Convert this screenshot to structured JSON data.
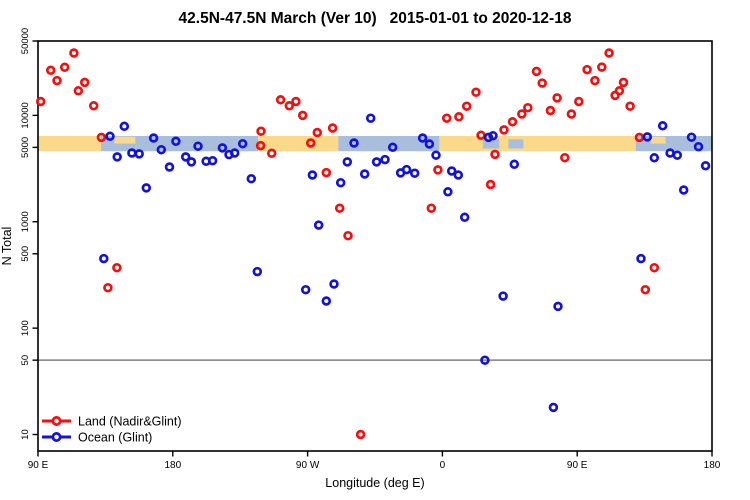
{
  "title": "42.5N-47.5N March (Ver 10)   2015-01-01 to 2020-12-18",
  "axes": {
    "x": {
      "label": "Longitude (deg E)",
      "range": [
        90,
        540
      ],
      "ticks": [
        {
          "lon": 90,
          "label": "90 E"
        },
        {
          "lon": 180,
          "label": "180"
        },
        {
          "lon": 270,
          "label": "90 W"
        },
        {
          "lon": 360,
          "label": "0"
        },
        {
          "lon": 450,
          "label": "90 E"
        },
        {
          "lon": 540,
          "label": "180"
        }
      ]
    },
    "y": {
      "label": "N Total",
      "scale": "log",
      "range": [
        7,
        50000
      ],
      "ticks": [
        {
          "value": 50000,
          "label": "50000"
        },
        {
          "value": 10000,
          "label": "10000"
        },
        {
          "value": 5000,
          "label": "5000"
        },
        {
          "value": 1000,
          "label": "1000"
        },
        {
          "value": 500,
          "label": "500"
        },
        {
          "value": 100,
          "label": "100"
        },
        {
          "value": 50,
          "label": "50"
        },
        {
          "value": 10,
          "label": "10"
        }
      ]
    }
  },
  "reference_line": {
    "value": 50,
    "color": "#7f7f7f"
  },
  "land_ocean_band": {
    "n_range": [
      4600,
      6400
    ],
    "land_color": "#fbd98a",
    "ocean_color": "#a9bedc",
    "segments": [
      {
        "from": 90,
        "to": 132,
        "surface": "land"
      },
      {
        "from": 132,
        "to": 237,
        "surface": "ocean"
      },
      {
        "from": 237,
        "to": 290.5,
        "surface": "land"
      },
      {
        "from": 290.5,
        "to": 358,
        "surface": "ocean"
      },
      {
        "from": 358,
        "to": 489,
        "surface": "land"
      },
      {
        "from": 489,
        "to": 540,
        "surface": "ocean"
      }
    ],
    "patches": [
      {
        "from": 141,
        "to": 155,
        "surface": "land"
      },
      {
        "from": 499,
        "to": 509,
        "surface": "land"
      },
      {
        "from": 387,
        "to": 398,
        "surface": "ocean"
      },
      {
        "from": 404,
        "to": 414,
        "surface": "ocean"
      }
    ]
  },
  "legend": {
    "items": [
      {
        "label": "Land (Nadir&Glint)",
        "color": "#f60d0d"
      },
      {
        "label": "Ocean (Glint)",
        "color": "#1212dd"
      }
    ]
  },
  "chart_data": {
    "type": "scatter",
    "title": "42.5N-47.5N March (Ver 10)   2015-01-01 to 2020-12-18",
    "xlabel": "Longitude (deg E)",
    "ylabel": "N Total",
    "x_axis_note": "longitude axis spans 450 degrees eastward from 90E (90E > 180 > 90W > 0 > 90E > 180); values above 360 wrap past Greenwich",
    "y_axis": "log scale, 7 to 50000",
    "grid": false,
    "legend_position": "bottom-left",
    "series": [
      {
        "name": "Land (Nadir&Glint)",
        "color": "#f60d0d",
        "points": [
          [
            91.8,
            13500
          ],
          [
            98.5,
            26500
          ],
          [
            102.7,
            21200
          ],
          [
            107.8,
            28300
          ],
          [
            114,
            38600
          ],
          [
            116.9,
            17000
          ],
          [
            121.2,
            20400
          ],
          [
            127.2,
            12300
          ],
          [
            132.3,
            6200
          ],
          [
            136.7,
            240
          ],
          [
            142.7,
            370
          ],
          [
            238.6,
            5200
          ],
          [
            238.9,
            7100
          ],
          [
            246,
            4400
          ],
          [
            252,
            14000
          ],
          [
            257.8,
            12300
          ],
          [
            262.2,
            13500
          ],
          [
            266.7,
            10000
          ],
          [
            272.1,
            5500
          ],
          [
            276.5,
            6900
          ],
          [
            282.5,
            2900
          ],
          [
            286.7,
            7600
          ],
          [
            291.4,
            1340
          ],
          [
            297,
            740
          ],
          [
            305.4,
            10
          ],
          [
            352.6,
            1340
          ],
          [
            357,
            3070
          ],
          [
            362.9,
            9400
          ],
          [
            371,
            9700
          ],
          [
            376.2,
            12200
          ],
          [
            382.4,
            16500
          ],
          [
            385.8,
            6500
          ],
          [
            392.2,
            2240
          ],
          [
            395.1,
            4300
          ],
          [
            401.1,
            7300
          ],
          [
            406.8,
            8700
          ],
          [
            413,
            10300
          ],
          [
            417,
            11800
          ],
          [
            422.8,
            25900
          ],
          [
            426.6,
            20100
          ],
          [
            432.1,
            11100
          ],
          [
            436.6,
            14600
          ],
          [
            441.7,
            4000
          ],
          [
            446.1,
            10300
          ],
          [
            451.1,
            13500
          ],
          [
            456.6,
            26900
          ],
          [
            461.8,
            21200
          ],
          [
            466.4,
            28400
          ],
          [
            471.3,
            38600
          ],
          [
            475.3,
            15400
          ],
          [
            478.2,
            17000
          ],
          [
            480.9,
            20400
          ],
          [
            485.3,
            12200
          ],
          [
            491.5,
            6200
          ],
          [
            495.5,
            230
          ],
          [
            501.5,
            370
          ]
        ]
      },
      {
        "name": "Ocean (Glint)",
        "color": "#1212dd",
        "points": [
          [
            133.9,
            450
          ],
          [
            138.1,
            6350
          ],
          [
            142.9,
            4070
          ],
          [
            147.6,
            7900
          ],
          [
            152.7,
            4430
          ],
          [
            157.6,
            4340
          ],
          [
            162.3,
            2080
          ],
          [
            167.2,
            6130
          ],
          [
            172.3,
            4760
          ],
          [
            177.8,
            3270
          ],
          [
            182.1,
            5700
          ],
          [
            188.6,
            4070
          ],
          [
            192.4,
            3650
          ],
          [
            196.8,
            5130
          ],
          [
            202.2,
            3700
          ],
          [
            206.6,
            3750
          ],
          [
            213.1,
            4940
          ],
          [
            217.5,
            4280
          ],
          [
            221.3,
            4430
          ],
          [
            226.7,
            5420
          ],
          [
            232.4,
            2540
          ],
          [
            236.4,
            340
          ],
          [
            268.7,
            230
          ],
          [
            273.2,
            2750
          ],
          [
            277.4,
            930
          ],
          [
            282.5,
            180
          ],
          [
            287.6,
            260
          ],
          [
            292.1,
            2330
          ],
          [
            296.5,
            3650
          ],
          [
            301,
            5500
          ],
          [
            308.1,
            2810
          ],
          [
            312.1,
            9400
          ],
          [
            316.1,
            3650
          ],
          [
            321.7,
            3840
          ],
          [
            326.8,
            5010
          ],
          [
            332.1,
            2880
          ],
          [
            336.1,
            3090
          ],
          [
            341.5,
            2860
          ],
          [
            346.8,
            6130
          ],
          [
            351.3,
            5380
          ],
          [
            355.7,
            4220
          ],
          [
            363.7,
            1910
          ],
          [
            366.2,
            3000
          ],
          [
            370.6,
            2750
          ],
          [
            374.9,
            1100
          ],
          [
            388.4,
            50
          ],
          [
            390.8,
            6200
          ],
          [
            393.8,
            6440
          ],
          [
            400.5,
            200
          ],
          [
            408,
            3470
          ],
          [
            434.1,
            18
          ],
          [
            437.2,
            160
          ],
          [
            492.6,
            450
          ],
          [
            496.8,
            6270
          ],
          [
            501.5,
            3990
          ],
          [
            507.1,
            7980
          ],
          [
            512,
            4430
          ],
          [
            516.8,
            4220
          ],
          [
            521.1,
            1990
          ],
          [
            526.3,
            6230
          ],
          [
            531,
            5070
          ],
          [
            535.7,
            3360
          ]
        ]
      }
    ]
  }
}
